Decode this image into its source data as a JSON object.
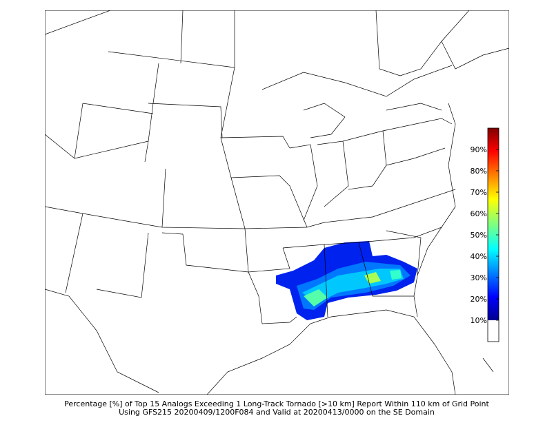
{
  "map": {
    "caption": [
      "Percentage [%] of Top 15 Analogs Exceeding 1 Long-Track Tornado [>10 km] Report Within 110 km of Grid Point",
      "Using GFS215 20200409/1200F084 and Valid at 20200413/0000 on the SE Domain"
    ],
    "colorbar": {
      "range": [
        0,
        100
      ],
      "ticks": [
        {
          "value": 10,
          "label": "10%"
        },
        {
          "value": 20,
          "label": "20%"
        },
        {
          "value": 30,
          "label": "30%"
        },
        {
          "value": 40,
          "label": "40%"
        },
        {
          "value": 50,
          "label": "50%"
        },
        {
          "value": 60,
          "label": "60%"
        },
        {
          "value": 70,
          "label": "70%"
        },
        {
          "value": 80,
          "label": "80%"
        },
        {
          "value": 90,
          "label": "90%"
        }
      ]
    }
  }
}
